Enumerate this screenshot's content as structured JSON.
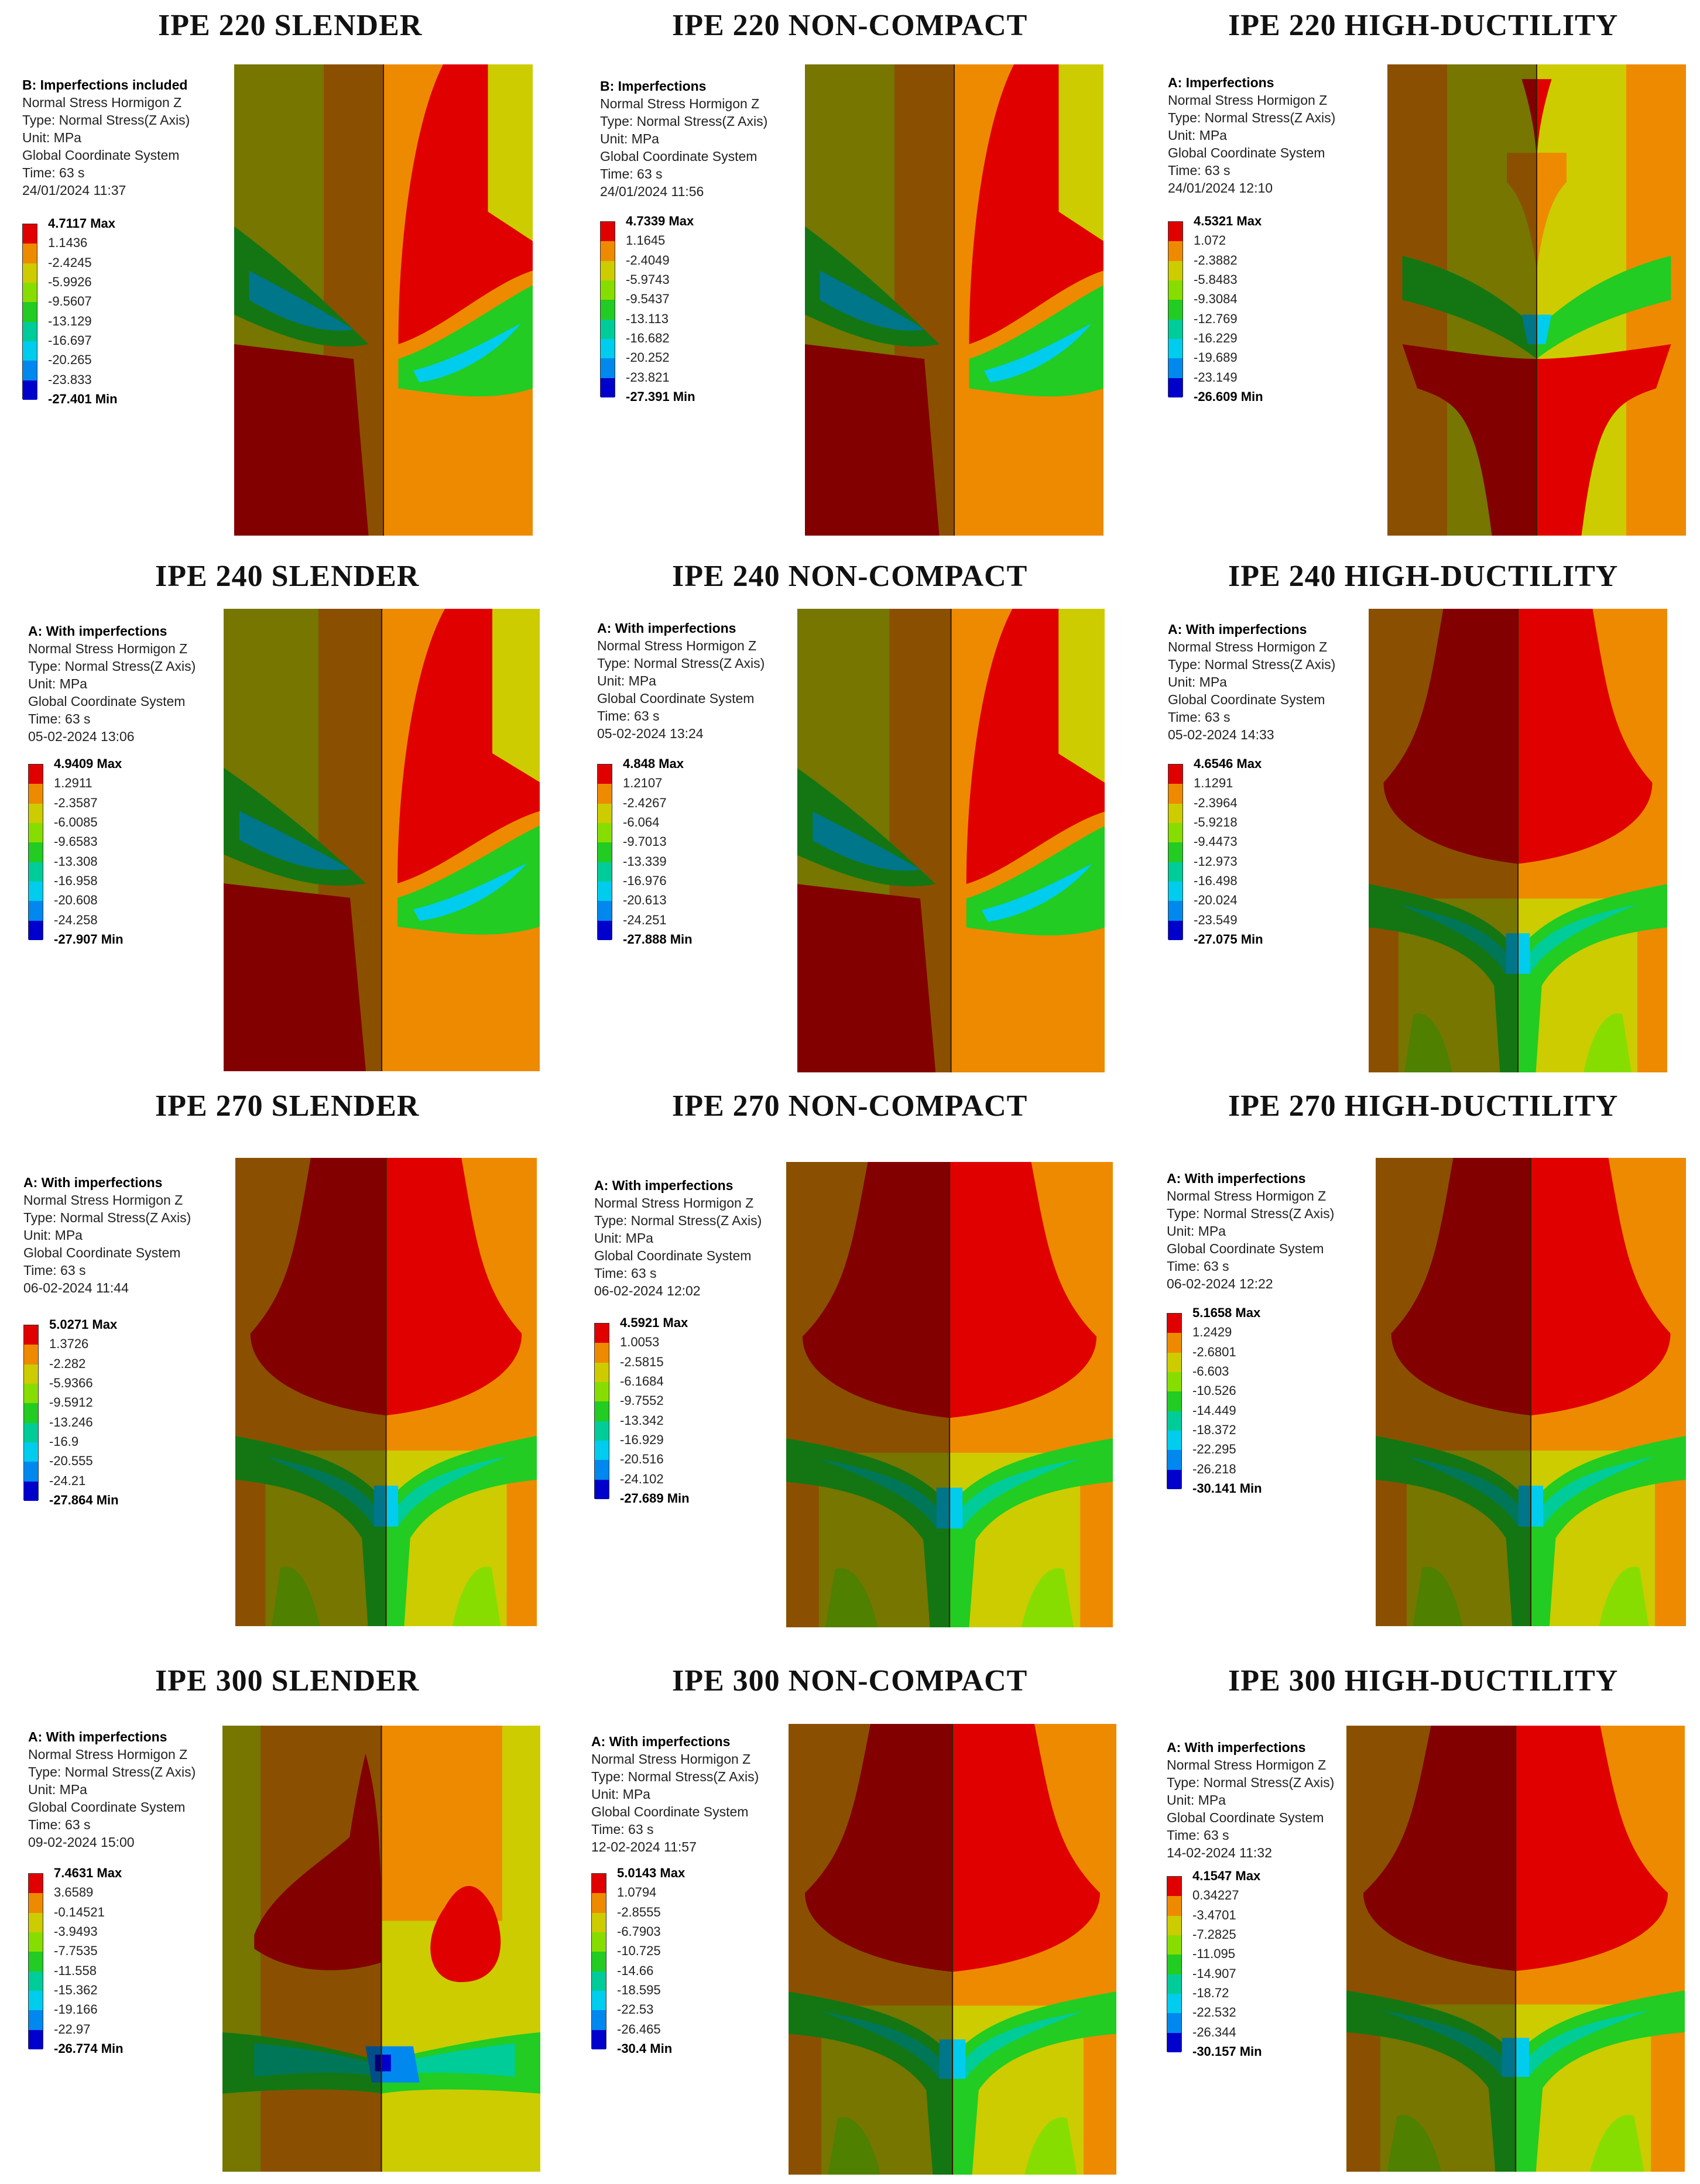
{
  "colors": {
    "c1": "#e00000",
    "c2": "#ee8a00",
    "c3": "#cccc00",
    "c4": "#88dd00",
    "c5": "#22cc22",
    "c6": "#00cc99",
    "c7": "#00ccee",
    "c8": "#0088ee",
    "c9": "#0000cc"
  },
  "panels": [
    {
      "title": "IPE 220 SLENDER",
      "info": [
        "B: Imperfections included",
        "Normal Stress Hormigon Z",
        "Type: Normal Stress(Z Axis)",
        "Unit: MPa",
        "Global Coordinate System",
        "Time: 63 s",
        "24/01/2024 11:37"
      ],
      "legend": [
        "4.7117 Max",
        "1.1436",
        "-2.4245",
        "-5.9926",
        "-9.5607",
        "-13.129",
        "-16.697",
        "-20.265",
        "-23.833",
        "-27.401 Min"
      ],
      "pattern": "A"
    },
    {
      "title": "IPE 220 NON-COMPACT",
      "info": [
        "B: Imperfections",
        "Normal Stress Hormigon Z",
        "Type: Normal Stress(Z Axis)",
        "Unit: MPa",
        "Global Coordinate System",
        "Time: 63 s",
        "24/01/2024 11:56"
      ],
      "legend": [
        "4.7339 Max",
        "1.1645",
        "-2.4049",
        "-5.9743",
        "-9.5437",
        "-13.113",
        "-16.682",
        "-20.252",
        "-23.821",
        "-27.391 Min"
      ],
      "pattern": "A"
    },
    {
      "title": "IPE 220 HIGH-DUCTILITY",
      "info": [
        "A: Imperfections",
        "Normal Stress Hormigon Z",
        "Type: Normal Stress(Z Axis)",
        "Unit: MPa",
        "Global Coordinate System",
        "Time: 63 s",
        "24/01/2024 12:10"
      ],
      "legend": [
        "4.5321 Max",
        "1.072",
        "-2.3882",
        "-5.8483",
        "-9.3084",
        "-12.769",
        "-16.229",
        "-19.689",
        "-23.149",
        "-26.609 Min"
      ],
      "pattern": "B"
    },
    {
      "title": "IPE 240 SLENDER",
      "info": [
        "A: With imperfections",
        "Normal Stress Hormigon Z",
        "Type: Normal Stress(Z Axis)",
        "Unit: MPa",
        "Global Coordinate System",
        "Time: 63 s",
        "05-02-2024 13:06"
      ],
      "legend": [
        "4.9409 Max",
        "1.2911",
        "-2.3587",
        "-6.0085",
        "-9.6583",
        "-13.308",
        "-16.958",
        "-20.608",
        "-24.258",
        "-27.907 Min"
      ],
      "pattern": "A"
    },
    {
      "title": "IPE 240 NON-COMPACT",
      "info": [
        "A: With imperfections",
        "Normal Stress Hormigon Z",
        "Type: Normal Stress(Z Axis)",
        "Unit: MPa",
        "Global Coordinate System",
        "Time: 63 s",
        "05-02-2024 13:24"
      ],
      "legend": [
        "4.848 Max",
        "1.2107",
        "-2.4267",
        "-6.064",
        "-9.7013",
        "-13.339",
        "-16.976",
        "-20.613",
        "-24.251",
        "-27.888 Min"
      ],
      "pattern": "A"
    },
    {
      "title": "IPE 240 HIGH-DUCTILITY",
      "info": [
        "A: With imperfections",
        "Normal Stress Hormigon Z",
        "Type: Normal Stress(Z Axis)",
        "Unit: MPa",
        "Global Coordinate System",
        "Time: 63 s",
        "05-02-2024 14:33"
      ],
      "legend": [
        "4.6546 Max",
        "1.1291",
        "-2.3964",
        "-5.9218",
        "-9.4473",
        "-12.973",
        "-16.498",
        "-20.024",
        "-23.549",
        "-27.075 Min"
      ],
      "pattern": "C"
    },
    {
      "title": "IPE 270 SLENDER",
      "info": [
        "A: With imperfections",
        "Normal Stress Hormigon Z",
        "Type: Normal Stress(Z Axis)",
        "Unit: MPa",
        "Global Coordinate System",
        "Time: 63 s",
        "06-02-2024 11:44"
      ],
      "legend": [
        "5.0271 Max",
        "1.3726",
        "-2.282",
        "-5.9366",
        "-9.5912",
        "-13.246",
        "-16.9",
        "-20.555",
        "-24.21",
        "-27.864 Min"
      ],
      "pattern": "C"
    },
    {
      "title": "IPE 270 NON-COMPACT",
      "info": [
        "A: With imperfections",
        "Normal Stress Hormigon Z",
        "Type: Normal Stress(Z Axis)",
        "Unit: MPa",
        "Global Coordinate System",
        "Time: 63 s",
        "06-02-2024 12:02"
      ],
      "legend": [
        "4.5921 Max",
        "1.0053",
        "-2.5815",
        "-6.1684",
        "-9.7552",
        "-13.342",
        "-16.929",
        "-20.516",
        "-24.102",
        "-27.689 Min"
      ],
      "pattern": "C"
    },
    {
      "title": "IPE 270 HIGH-DUCTILITY",
      "info": [
        "A: With imperfections",
        "Normal Stress Hormigon Z",
        "Type: Normal Stress(Z Axis)",
        "Unit: MPa",
        "Global Coordinate System",
        "Time: 63 s",
        "06-02-2024 12:22"
      ],
      "legend": [
        "5.1658 Max",
        "1.2429",
        "-2.6801",
        "-6.603",
        "-10.526",
        "-14.449",
        "-18.372",
        "-22.295",
        "-26.218",
        "-30.141 Min"
      ],
      "pattern": "C"
    },
    {
      "title": "IPE 300 SLENDER",
      "info": [
        "A: With imperfections",
        "Normal Stress Hormigon Z",
        "Type: Normal Stress(Z Axis)",
        "Unit: MPa",
        "Global Coordinate System",
        "Time: 63 s",
        "09-02-2024 15:00"
      ],
      "legend": [
        "7.4631 Max",
        "3.6589",
        "-0.14521",
        "-3.9493",
        "-7.7535",
        "-11.558",
        "-15.362",
        "-19.166",
        "-22.97",
        "-26.774 Min"
      ],
      "pattern": "D"
    },
    {
      "title": "IPE 300 NON-COMPACT",
      "info": [
        "A: With imperfections",
        "Normal Stress Hormigon Z",
        "Type: Normal Stress(Z Axis)",
        "Unit: MPa",
        "Global Coordinate System",
        "Time: 63 s",
        "12-02-2024 11:57"
      ],
      "legend": [
        "5.0143 Max",
        "1.0794",
        "-2.8555",
        "-6.7903",
        "-10.725",
        "-14.66",
        "-18.595",
        "-22.53",
        "-26.465",
        "-30.4 Min"
      ],
      "pattern": "C"
    },
    {
      "title": "IPE 300 HIGH-DUCTILITY",
      "info": [
        "A: With imperfections",
        "Normal Stress Hormigon Z",
        "Type: Normal Stress(Z Axis)",
        "Unit: MPa",
        "Global Coordinate System",
        "Time: 63 s",
        "14-02-2024 11:32"
      ],
      "legend": [
        "4.1547 Max",
        "0.34227",
        "-3.4701",
        "-7.2825",
        "-11.095",
        "-14.907",
        "-18.72",
        "-22.532",
        "-26.344",
        "-30.157 Min"
      ],
      "pattern": "C"
    }
  ]
}
